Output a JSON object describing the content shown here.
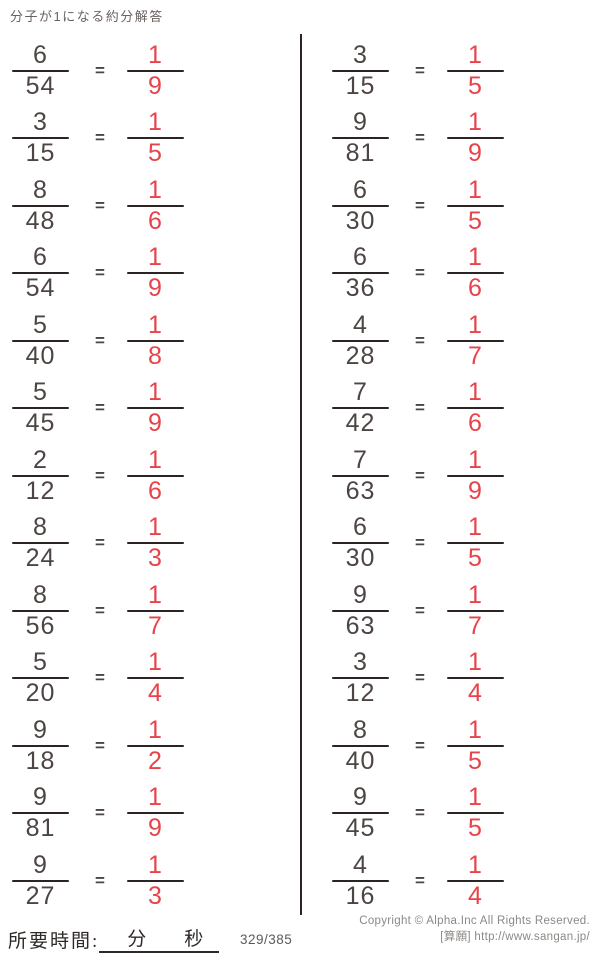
{
  "title": "分子が1になる約分解答",
  "equals": "=",
  "colors": {
    "answer_red": "#e8424a",
    "ink": "#4c4543",
    "bar": "#2b2422"
  },
  "columns": [
    {
      "problems": [
        {
          "num": "6",
          "den": "54",
          "ans_num": "1",
          "ans_den": "9"
        },
        {
          "num": "3",
          "den": "15",
          "ans_num": "1",
          "ans_den": "5"
        },
        {
          "num": "8",
          "den": "48",
          "ans_num": "1",
          "ans_den": "6"
        },
        {
          "num": "6",
          "den": "54",
          "ans_num": "1",
          "ans_den": "9"
        },
        {
          "num": "5",
          "den": "40",
          "ans_num": "1",
          "ans_den": "8"
        },
        {
          "num": "5",
          "den": "45",
          "ans_num": "1",
          "ans_den": "9"
        },
        {
          "num": "2",
          "den": "12",
          "ans_num": "1",
          "ans_den": "6"
        },
        {
          "num": "8",
          "den": "24",
          "ans_num": "1",
          "ans_den": "3"
        },
        {
          "num": "8",
          "den": "56",
          "ans_num": "1",
          "ans_den": "7"
        },
        {
          "num": "5",
          "den": "20",
          "ans_num": "1",
          "ans_den": "4"
        },
        {
          "num": "9",
          "den": "18",
          "ans_num": "1",
          "ans_den": "2"
        },
        {
          "num": "9",
          "den": "81",
          "ans_num": "1",
          "ans_den": "9"
        },
        {
          "num": "9",
          "den": "27",
          "ans_num": "1",
          "ans_den": "3"
        }
      ]
    },
    {
      "problems": [
        {
          "num": "3",
          "den": "15",
          "ans_num": "1",
          "ans_den": "5"
        },
        {
          "num": "9",
          "den": "81",
          "ans_num": "1",
          "ans_den": "9"
        },
        {
          "num": "6",
          "den": "30",
          "ans_num": "1",
          "ans_den": "5"
        },
        {
          "num": "6",
          "den": "36",
          "ans_num": "1",
          "ans_den": "6"
        },
        {
          "num": "4",
          "den": "28",
          "ans_num": "1",
          "ans_den": "7"
        },
        {
          "num": "7",
          "den": "42",
          "ans_num": "1",
          "ans_den": "6"
        },
        {
          "num": "7",
          "den": "63",
          "ans_num": "1",
          "ans_den": "9"
        },
        {
          "num": "6",
          "den": "30",
          "ans_num": "1",
          "ans_den": "5"
        },
        {
          "num": "9",
          "den": "63",
          "ans_num": "1",
          "ans_den": "7"
        },
        {
          "num": "3",
          "den": "12",
          "ans_num": "1",
          "ans_den": "4"
        },
        {
          "num": "8",
          "den": "40",
          "ans_num": "1",
          "ans_den": "5"
        },
        {
          "num": "9",
          "den": "45",
          "ans_num": "1",
          "ans_den": "5"
        },
        {
          "num": "4",
          "den": "16",
          "ans_num": "1",
          "ans_den": "4"
        }
      ]
    }
  ],
  "footer": {
    "time_label": "所要時間:",
    "minutes_label": "分",
    "seconds_label": "秒",
    "page": "329/385",
    "copyright": "Copyright ©  Alpha.Inc All Rights Reserved.",
    "site": "[算願] http://www.sangan.jp/"
  }
}
